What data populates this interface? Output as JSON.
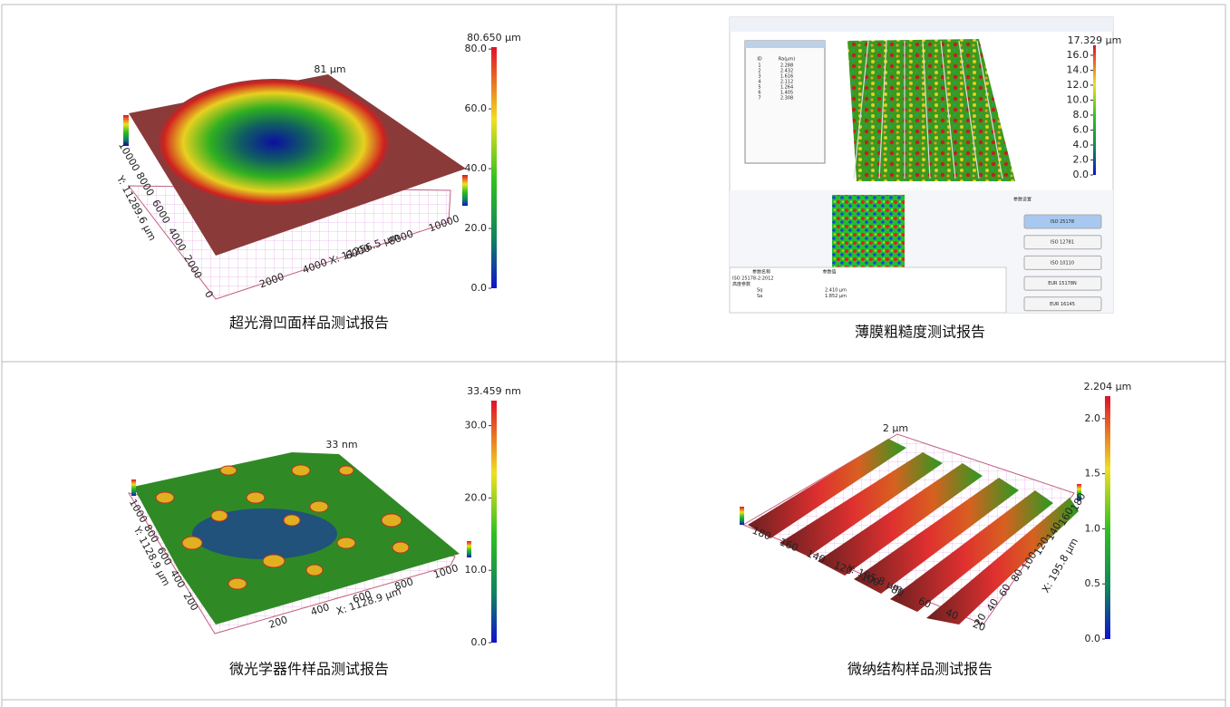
{
  "panels": [
    {
      "caption": "超光滑凹面样品测试报告",
      "top_label": "81 μm",
      "x_label": "X: 11256.5 μm",
      "y_label": "Y: 11289.6 μm",
      "x_ticks": [
        "2000",
        "4000",
        "6000",
        "8000",
        "10000"
      ],
      "y_ticks": [
        "0",
        "2000",
        "4000",
        "6000",
        "8000",
        "10000"
      ],
      "colorbar": {
        "title": "80.650 μm",
        "range": [
          0,
          80.65
        ],
        "ticks": [
          {
            "value": 80,
            "label": "80.0"
          },
          {
            "value": 60,
            "label": "60.0"
          },
          {
            "value": 40,
            "label": "40.0"
          },
          {
            "value": 20,
            "label": "20.0"
          },
          {
            "value": 0,
            "label": "0.0"
          }
        ]
      }
    },
    {
      "caption": "薄膜粗糙度测试报告",
      "table": {
        "header": [
          "ID",
          "Ra(μm)"
        ],
        "rows": [
          [
            "1",
            "2.288"
          ],
          [
            "2",
            "2.432"
          ],
          [
            "3",
            "1.616"
          ],
          [
            "4",
            "2.112"
          ],
          [
            "5",
            "1.264"
          ],
          [
            "6",
            "1.405"
          ],
          [
            "7",
            "2.308"
          ]
        ]
      },
      "settings_title": "参数设置",
      "buttons": [
        "ISO 25178",
        "ISO 12781",
        "ISO 10110",
        "EUR 15178N",
        "EUR 16145"
      ],
      "params": {
        "header": [
          "参数名称",
          "参数值"
        ],
        "rows": [
          [
            "ISO 25178-2:2012",
            ""
          ],
          [
            "高度参数",
            ""
          ],
          [
            "Sq",
            "2.410 μm"
          ],
          [
            "Sa",
            "1.852 μm"
          ]
        ]
      },
      "colorbar": {
        "title": "17.329 μm",
        "range": [
          0,
          17.329
        ],
        "ticks": [
          {
            "value": 16,
            "label": "16.0"
          },
          {
            "value": 14,
            "label": "14.0"
          },
          {
            "value": 12,
            "label": "12.0"
          },
          {
            "value": 10,
            "label": "10.0"
          },
          {
            "value": 8,
            "label": "8.0"
          },
          {
            "value": 6,
            "label": "6.0"
          },
          {
            "value": 4,
            "label": "4.0"
          },
          {
            "value": 2,
            "label": "2.0"
          },
          {
            "value": 0,
            "label": "0.0"
          }
        ]
      }
    },
    {
      "caption": "微光学器件样品测试报告",
      "top_label": "33 nm",
      "x_label": "X: 1128.9 μm",
      "y_label": "Y: 1128.9 μm",
      "x_ticks": [
        "200",
        "400",
        "600",
        "800",
        "1000"
      ],
      "y_ticks": [
        "200",
        "400",
        "600",
        "800",
        "1000"
      ],
      "colorbar": {
        "title": "33.459 nm",
        "range": [
          0,
          33.459
        ],
        "ticks": [
          {
            "value": 30,
            "label": "30.0"
          },
          {
            "value": 20,
            "label": "20.0"
          },
          {
            "value": 10,
            "label": "10.0"
          },
          {
            "value": 0,
            "label": "0.0"
          }
        ]
      }
    },
    {
      "caption": "微纳结构样品测试报告",
      "top_label": "2 μm",
      "x_label": "X: 195.8 μm",
      "y_label": "Y: 195.8 μm",
      "x_ticks": [
        "20",
        "40",
        "60",
        "80",
        "100",
        "120",
        "140",
        "160",
        "180"
      ],
      "y_ticks": [
        "20",
        "40",
        "60",
        "80",
        "100",
        "120",
        "140",
        "160",
        "180"
      ],
      "colorbar": {
        "title": "2.204 μm",
        "range": [
          0,
          2.204
        ],
        "ticks": [
          {
            "value": 2,
            "label": "2.0"
          },
          {
            "value": 1.5,
            "label": "1.5"
          },
          {
            "value": 1,
            "label": "1.0"
          },
          {
            "value": 0.5,
            "label": "0.5"
          },
          {
            "value": 0,
            "label": "0.0"
          }
        ]
      }
    }
  ]
}
